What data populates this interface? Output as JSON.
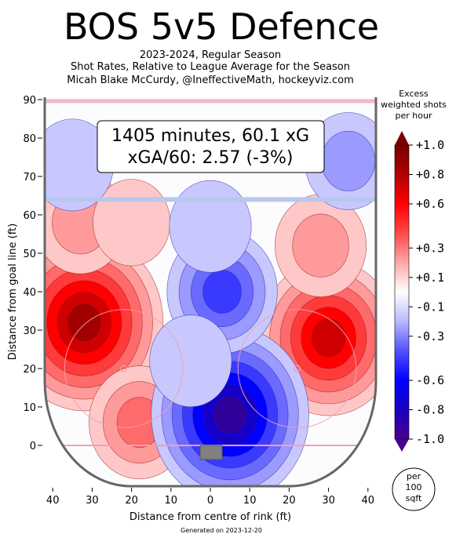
{
  "chart_data": {
    "type": "heatmap",
    "title": "BOS 5v5 Defence",
    "subtitle_lines": [
      "2023-2024, Regular Season",
      "Shot Rates, Relative to League Average for the Season",
      "Micah Blake McCurdy, @IneffectiveMath, hockeyviz.com"
    ],
    "annotation_lines": [
      "1405 minutes, 60.1 xG",
      "xGA/60: 2.57 (-3%)"
    ],
    "xlabel": "Distance from centre of rink (ft)",
    "ylabel": "Distance from goal line (ft)",
    "xlim": [
      -42,
      42
    ],
    "ylim": [
      -11,
      90
    ],
    "x_ticks": [
      {
        "v": -40,
        "label": "40"
      },
      {
        "v": -30,
        "label": "30"
      },
      {
        "v": -20,
        "label": "20"
      },
      {
        "v": -10,
        "label": "10"
      },
      {
        "v": 0,
        "label": "0"
      },
      {
        "v": 10,
        "label": "10"
      },
      {
        "v": 20,
        "label": "20"
      },
      {
        "v": 30,
        "label": "30"
      },
      {
        "v": 40,
        "label": "40"
      }
    ],
    "y_ticks": [
      {
        "v": 0,
        "label": "0"
      },
      {
        "v": 10,
        "label": "10"
      },
      {
        "v": 20,
        "label": "20"
      },
      {
        "v": 30,
        "label": "30"
      },
      {
        "v": 40,
        "label": "40"
      },
      {
        "v": 50,
        "label": "50"
      },
      {
        "v": 60,
        "label": "60"
      },
      {
        "v": 70,
        "label": "70"
      },
      {
        "v": 80,
        "label": "80"
      },
      {
        "v": 90,
        "label": "90"
      }
    ],
    "colorbar": {
      "title_lines": [
        "Excess",
        "weighted shots",
        "per hour"
      ],
      "range": [
        -1.0,
        1.0
      ],
      "tick_values": [
        1.0,
        0.8,
        0.6,
        0.3,
        0.1,
        -0.1,
        -0.3,
        -0.6,
        -0.8,
        -1.0
      ],
      "tick_labels": [
        "+1.0",
        "+0.8",
        "+0.6",
        "+0.3",
        "+0.1",
        "-0.1",
        "-0.3",
        "-0.6",
        "-0.8",
        "-1.0"
      ],
      "unit_lines": [
        "per",
        "100",
        "sqft"
      ]
    },
    "hotspots": [
      {
        "x": -32,
        "y": 32,
        "value": 1.0
      },
      {
        "x": 30,
        "y": 28,
        "value": 0.8
      },
      {
        "x": -18,
        "y": 6,
        "value": 0.4
      },
      {
        "x": -33,
        "y": 58,
        "value": 0.3
      },
      {
        "x": 28,
        "y": 52,
        "value": 0.3
      },
      {
        "x": -20,
        "y": 58,
        "value": 0.15
      },
      {
        "x": 5,
        "y": 8,
        "value": -1.0
      },
      {
        "x": 3,
        "y": 40,
        "value": -0.5
      },
      {
        "x": 0,
        "y": 57,
        "value": -0.2
      },
      {
        "x": -35,
        "y": 73,
        "value": -0.2
      },
      {
        "x": 35,
        "y": 74,
        "value": -0.25
      },
      {
        "x": -5,
        "y": 22,
        "value": -0.2
      }
    ],
    "footer": "Generated on 2023-12-20"
  }
}
